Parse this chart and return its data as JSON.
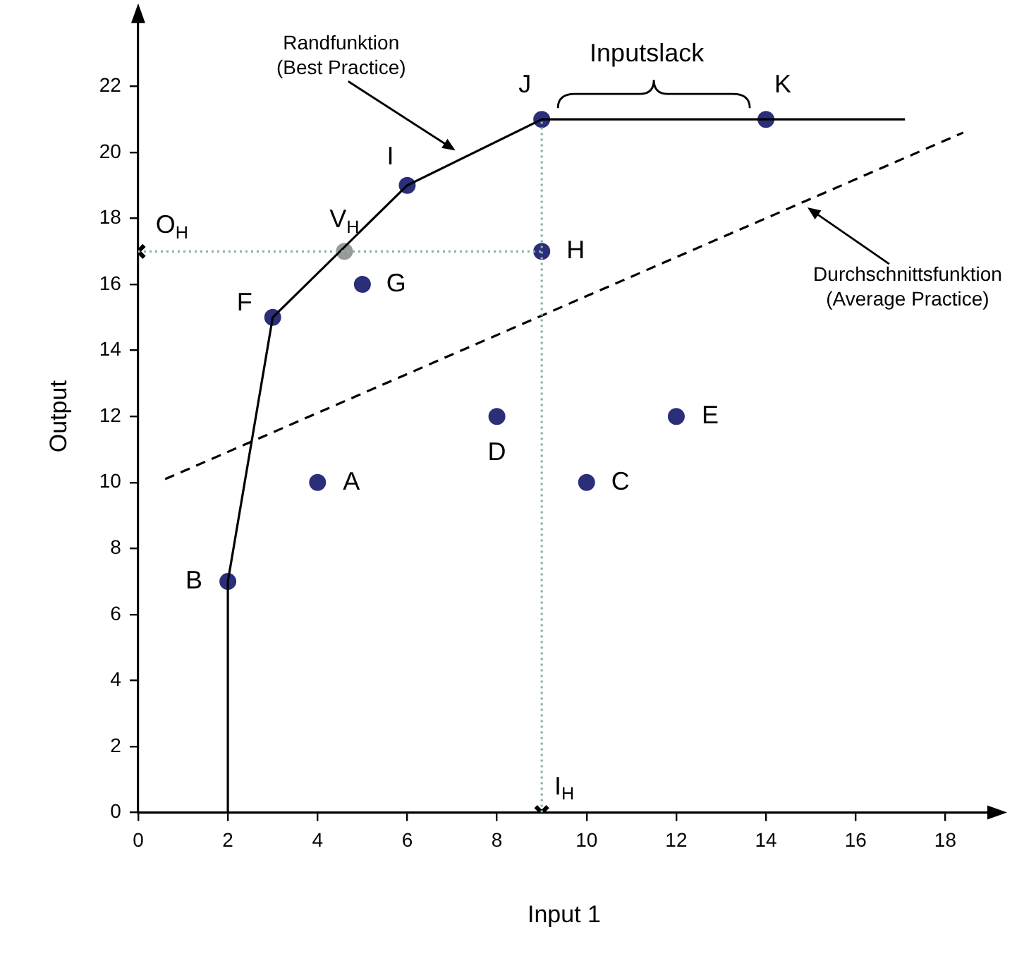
{
  "chart_data": {
    "type": "scatter",
    "xlabel": "Input 1",
    "ylabel": "Output",
    "xlim": [
      0,
      19
    ],
    "ylim": [
      0,
      24
    ],
    "xticks": [
      0,
      2,
      4,
      6,
      8,
      10,
      12,
      14,
      16,
      18
    ],
    "yticks": [
      0,
      2,
      4,
      6,
      8,
      10,
      12,
      14,
      16,
      18,
      20,
      22
    ],
    "grid": false,
    "legend": false,
    "series": [
      {
        "type": "line",
        "color": "#8fb0b0",
        "line_style": "dotted",
        "marker": "none",
        "x": [
          0,
          9
        ],
        "values": [
          17,
          17
        ]
      },
      {
        "type": "line",
        "color": "#8fb0b0",
        "line_style": "dotted",
        "marker": "none",
        "x": [
          9,
          9
        ],
        "values": [
          0,
          21
        ]
      },
      {
        "type": "line",
        "color": "#000000",
        "line_style": "dashed",
        "marker": "none",
        "x": [
          0.6,
          18.4
        ],
        "values": [
          10.1,
          20.6
        ]
      },
      {
        "type": "line",
        "color": "#000000",
        "line_style": "solid",
        "marker": "none",
        "x": [
          2,
          2,
          3,
          6,
          9,
          17.1
        ],
        "values": [
          0,
          7,
          15,
          19,
          21,
          21
        ]
      },
      {
        "color": "#2b2f7a",
        "marker": "circle",
        "x": [
          4,
          2,
          10,
          8,
          12,
          3,
          5,
          9,
          6,
          9,
          14
        ],
        "values": [
          10,
          7,
          10,
          12,
          12,
          15,
          16,
          17,
          19,
          21,
          21
        ]
      },
      {
        "color": "#999999",
        "marker": "circle",
        "x": [
          4.6
        ],
        "values": [
          17
        ]
      },
      {
        "color": "#000000",
        "marker": "cross",
        "x": [
          0,
          9
        ],
        "values": [
          17,
          0
        ]
      }
    ],
    "annotations": [
      {
        "text": "A",
        "x": 4,
        "y": 10
      },
      {
        "text": "B",
        "x": 2,
        "y": 7
      },
      {
        "text": "C",
        "x": 10,
        "y": 10
      },
      {
        "text": "D",
        "x": 8,
        "y": 12
      },
      {
        "text": "E",
        "x": 12,
        "y": 12
      },
      {
        "text": "F",
        "x": 3,
        "y": 15
      },
      {
        "text": "G",
        "x": 5,
        "y": 16
      },
      {
        "text": "H",
        "x": 9,
        "y": 17
      },
      {
        "text": "I",
        "x": 6,
        "y": 19
      },
      {
        "text": "J",
        "x": 9,
        "y": 21
      },
      {
        "text": "K",
        "x": 14,
        "y": 21
      },
      {
        "text": "O$_{H}$",
        "x": 0,
        "y": 17
      },
      {
        "text": "V$_{H}$",
        "x": 4.6,
        "y": 17
      },
      {
        "text": "I$_{H}$",
        "x": 9,
        "y": 0
      },
      "Randfunktion\n(Best Practice)",
      {
        "text": "Inputslack",
        "x": 11.5,
        "y": 21
      },
      "Durchschnittsfunktion\n(Average Practice)"
    ]
  }
}
